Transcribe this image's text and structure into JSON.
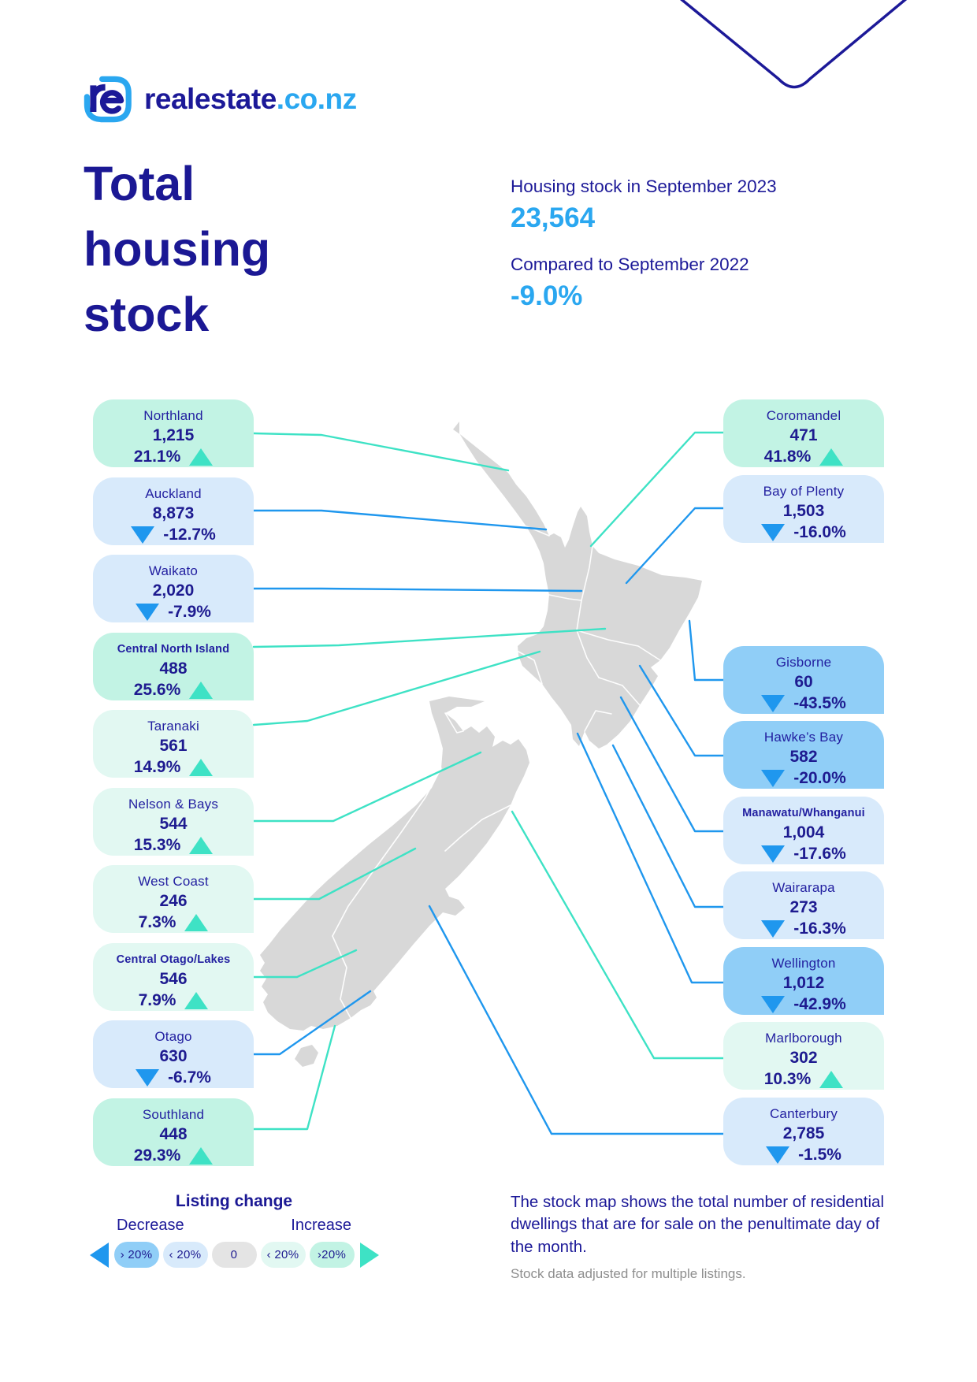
{
  "brand": {
    "wordmark": "realestate",
    "tld": ".co.nz"
  },
  "header": {
    "title_lines": [
      "Total",
      "housing",
      "stock"
    ],
    "stats": [
      {
        "label": "Housing stock in September 2023",
        "value": "23,564"
      },
      {
        "label": "Compared to September 2022",
        "value": "-9.0%"
      }
    ]
  },
  "regions_left": [
    {
      "name": "Northland",
      "value": "1,215",
      "change": "21.1%",
      "direction": "up",
      "band": "up-strong"
    },
    {
      "name": "Auckland",
      "value": "8,873",
      "change": "-12.7%",
      "direction": "down",
      "band": "down-light"
    },
    {
      "name": "Waikato",
      "value": "2,020",
      "change": "-7.9%",
      "direction": "down",
      "band": "down-light"
    },
    {
      "name": "Central North Island",
      "value": "488",
      "change": "25.6%",
      "direction": "up",
      "band": "up-strong"
    },
    {
      "name": "Taranaki",
      "value": "561",
      "change": "14.9%",
      "direction": "up",
      "band": "up-light"
    },
    {
      "name": "Nelson & Bays",
      "value": "544",
      "change": "15.3%",
      "direction": "up",
      "band": "up-light"
    },
    {
      "name": "West Coast",
      "value": "246",
      "change": "7.3%",
      "direction": "up",
      "band": "up-light"
    },
    {
      "name": "Central Otago/Lakes",
      "value": "546",
      "change": "7.9%",
      "direction": "up",
      "band": "up-light"
    },
    {
      "name": "Otago",
      "value": "630",
      "change": "-6.7%",
      "direction": "down",
      "band": "down-light"
    },
    {
      "name": "Southland",
      "value": "448",
      "change": "29.3%",
      "direction": "up",
      "band": "up-strong"
    }
  ],
  "regions_right": [
    {
      "name": "Coromandel",
      "value": "471",
      "change": "41.8%",
      "direction": "up",
      "band": "up-strong"
    },
    {
      "name": "Bay of Plenty",
      "value": "1,503",
      "change": "-16.0%",
      "direction": "down",
      "band": "down-light"
    },
    {
      "name": "Gisborne",
      "value": "60",
      "change": "-43.5%",
      "direction": "down",
      "band": "down-strong"
    },
    {
      "name": "Hawke’s Bay",
      "value": "582",
      "change": "-20.0%",
      "direction": "down",
      "band": "down-strong"
    },
    {
      "name": "Manawatu/Whanganui",
      "value": "1,004",
      "change": "-17.6%",
      "direction": "down",
      "band": "down-light"
    },
    {
      "name": "Wairarapa",
      "value": "273",
      "change": "-16.3%",
      "direction": "down",
      "band": "down-light"
    },
    {
      "name": "Wellington",
      "value": "1,012",
      "change": "-42.9%",
      "direction": "down",
      "band": "down-strong"
    },
    {
      "name": "Marlborough",
      "value": "302",
      "change": "10.3%",
      "direction": "up",
      "band": "up-light"
    },
    {
      "name": "Canterbury",
      "value": "2,785",
      "change": "-1.5%",
      "direction": "down",
      "band": "down-light"
    }
  ],
  "legend": {
    "title": "Listing change",
    "decrease_label": "Decrease",
    "increase_label": "Increase",
    "pills": [
      {
        "label": "› 20%",
        "band": "down-strong"
      },
      {
        "label": "‹ 20%",
        "band": "down-light"
      },
      {
        "label": "0",
        "band": "zero"
      },
      {
        "label": "‹ 20%",
        "band": "up-light"
      },
      {
        "label": "›20%",
        "band": "up-strong"
      }
    ]
  },
  "footer": {
    "description": "The stock map shows the total number of residential dwellings that are for sale on the penultimate day of the month.",
    "note": "Stock data adjusted for multiple listings."
  },
  "colors": {
    "navy": "#1c1998",
    "bright_blue": "#2aa7f0",
    "teal": "#3ee2c5",
    "connector_blue": "#1f97ee",
    "card_up_strong": "#c2f3e4",
    "card_up_light": "#e2f8f2",
    "card_down_light": "#d8eafb",
    "card_down_strong": "#90cef7",
    "pill_zero": "#e4e4e4",
    "map_gray": "#d8d8d8"
  }
}
